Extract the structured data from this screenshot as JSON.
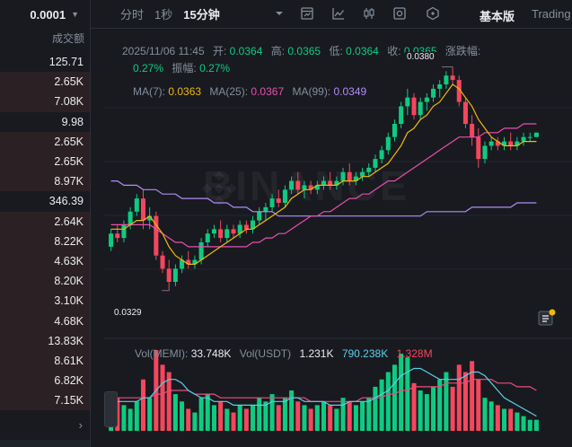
{
  "order_book": {
    "precision": "0.0001",
    "volume_header": "成交额",
    "rows": [
      {
        "value": "125.71",
        "shaded": false
      },
      {
        "value": "2.65K",
        "shaded": true
      },
      {
        "value": "7.08K",
        "shaded": true
      },
      {
        "value": "9.98",
        "shaded": false
      },
      {
        "value": "2.65K",
        "shaded": true
      },
      {
        "value": "2.65K",
        "shaded": true
      },
      {
        "value": "8.97K",
        "shaded": true
      },
      {
        "value": "346.39",
        "shaded": false
      },
      {
        "value": "2.64K",
        "shaded": true
      },
      {
        "value": "8.22K",
        "shaded": true
      },
      {
        "value": "4.63K",
        "shaded": true
      },
      {
        "value": "8.20K",
        "shaded": true
      },
      {
        "value": "3.10K",
        "shaded": true
      },
      {
        "value": "4.68K",
        "shaded": true
      },
      {
        "value": "13.83K",
        "shaded": true
      },
      {
        "value": "8.61K",
        "shaded": true
      },
      {
        "value": "6.82K",
        "shaded": true
      },
      {
        "value": "7.15K",
        "shaded": true
      }
    ],
    "more_icon": "chevron-right-icon"
  },
  "toolbar": {
    "timeframes": [
      "分时",
      "1秒",
      "15分钟"
    ],
    "active_timeframe": "15分钟",
    "icons": [
      "chevron-down-icon",
      "indicator-icon",
      "line-chart-icon",
      "candlestick-icon",
      "settings-icon",
      "hexagon-icon"
    ],
    "view_basic": "基本版",
    "view_trading": "Trading"
  },
  "candle_info": {
    "date": "2025/11/06 11:45",
    "open_label": "开:",
    "open": "0.0364",
    "high_label": "高:",
    "high": "0.0365",
    "low_label": "低:",
    "low": "0.0364",
    "close_label": "收:",
    "close": "0.0365",
    "change_label": "涨跌幅:",
    "change": "0.27%",
    "amp_label": "振幅:",
    "amp": "0.27%"
  },
  "ma": {
    "ma7_label": "MA(7):",
    "ma7": "0.0363",
    "ma25_label": "MA(25):",
    "ma25": "0.0367",
    "ma99_label": "MA(99):",
    "ma99": "0.0349"
  },
  "volume_info": {
    "vol_label": "Vol(MEMI):",
    "vol": "33.748K",
    "usdt_label": "Vol(USDT)",
    "usdt": "1.231K",
    "usdt_ma1": "790.238K",
    "usdt_ma2": "1.328M"
  },
  "markers": {
    "high": "0.0380",
    "low": "0.0329"
  },
  "watermark": "BINANCE",
  "colors": {
    "up": "#0ecb81",
    "down": "#f6465d",
    "ma7": "#f0b90b",
    "ma25": "#e84fad",
    "ma99": "#b38bf7",
    "vol_ma1": "#5ad0e8",
    "vol_ma2": "#e84f7a"
  },
  "chart_data": {
    "type": "candlestick",
    "interval": "15分钟",
    "price_range": [
      0.0322,
      0.0385
    ],
    "candles": [
      [
        0.0339,
        0.0343,
        0.0338,
        0.0342
      ],
      [
        0.0342,
        0.0344,
        0.034,
        0.0341
      ],
      [
        0.0341,
        0.0345,
        0.034,
        0.0344
      ],
      [
        0.0344,
        0.0348,
        0.0343,
        0.0347
      ],
      [
        0.0347,
        0.0351,
        0.0346,
        0.035
      ],
      [
        0.035,
        0.0352,
        0.0343,
        0.0345
      ],
      [
        0.0345,
        0.0348,
        0.0343,
        0.0346
      ],
      [
        0.0346,
        0.0347,
        0.0336,
        0.0337
      ],
      [
        0.0337,
        0.0338,
        0.0333,
        0.0334
      ],
      [
        0.0334,
        0.0336,
        0.0329,
        0.0331
      ],
      [
        0.0331,
        0.0335,
        0.033,
        0.0334
      ],
      [
        0.0334,
        0.0337,
        0.0333,
        0.0336
      ],
      [
        0.0336,
        0.0338,
        0.0334,
        0.0335
      ],
      [
        0.0335,
        0.0337,
        0.0334,
        0.0336
      ],
      [
        0.0336,
        0.0341,
        0.0335,
        0.034
      ],
      [
        0.034,
        0.0343,
        0.0339,
        0.0342
      ],
      [
        0.0342,
        0.0344,
        0.0341,
        0.0343
      ],
      [
        0.0343,
        0.0345,
        0.034,
        0.0341
      ],
      [
        0.0341,
        0.0344,
        0.034,
        0.0343
      ],
      [
        0.0343,
        0.0344,
        0.0341,
        0.0342
      ],
      [
        0.0342,
        0.0345,
        0.0341,
        0.0344
      ],
      [
        0.0344,
        0.0345,
        0.0342,
        0.0343
      ],
      [
        0.0343,
        0.0346,
        0.0342,
        0.0345
      ],
      [
        0.0345,
        0.0348,
        0.0344,
        0.0347
      ],
      [
        0.0347,
        0.0349,
        0.0345,
        0.0348
      ],
      [
        0.0348,
        0.0351,
        0.0347,
        0.035
      ],
      [
        0.035,
        0.0352,
        0.0348,
        0.0349
      ],
      [
        0.0349,
        0.0353,
        0.0348,
        0.0352
      ],
      [
        0.0352,
        0.0355,
        0.0351,
        0.0354
      ],
      [
        0.0354,
        0.0356,
        0.0351,
        0.0352
      ],
      [
        0.0352,
        0.0354,
        0.035,
        0.0353
      ],
      [
        0.0353,
        0.0354,
        0.0351,
        0.0352
      ],
      [
        0.0352,
        0.0354,
        0.0351,
        0.0353
      ],
      [
        0.0353,
        0.0355,
        0.0352,
        0.0354
      ],
      [
        0.0354,
        0.0356,
        0.0352,
        0.0353
      ],
      [
        0.0353,
        0.0355,
        0.0352,
        0.0354
      ],
      [
        0.0354,
        0.0357,
        0.0353,
        0.0356
      ],
      [
        0.0356,
        0.0358,
        0.0353,
        0.0354
      ],
      [
        0.0354,
        0.0356,
        0.0353,
        0.0355
      ],
      [
        0.0355,
        0.0357,
        0.0354,
        0.0356
      ],
      [
        0.0356,
        0.0358,
        0.0355,
        0.0357
      ],
      [
        0.0357,
        0.036,
        0.0356,
        0.0359
      ],
      [
        0.0359,
        0.0362,
        0.0358,
        0.0361
      ],
      [
        0.0361,
        0.0365,
        0.036,
        0.0364
      ],
      [
        0.0364,
        0.0368,
        0.0363,
        0.0367
      ],
      [
        0.0367,
        0.0372,
        0.0366,
        0.0371
      ],
      [
        0.0371,
        0.0375,
        0.0369,
        0.0373
      ],
      [
        0.0373,
        0.0374,
        0.0368,
        0.0369
      ],
      [
        0.0369,
        0.0373,
        0.0368,
        0.0372
      ],
      [
        0.0372,
        0.0374,
        0.037,
        0.0373
      ],
      [
        0.0373,
        0.0376,
        0.0372,
        0.0375
      ],
      [
        0.0375,
        0.0377,
        0.0373,
        0.0376
      ],
      [
        0.0376,
        0.0379,
        0.0375,
        0.0378
      ],
      [
        0.0378,
        0.038,
        0.0376,
        0.0377
      ],
      [
        0.0377,
        0.0378,
        0.0371,
        0.0372
      ],
      [
        0.0372,
        0.0373,
        0.0366,
        0.0367
      ],
      [
        0.0367,
        0.0369,
        0.0362,
        0.0364
      ],
      [
        0.0364,
        0.0366,
        0.0357,
        0.0359
      ],
      [
        0.0359,
        0.0363,
        0.0358,
        0.0362
      ],
      [
        0.0362,
        0.0364,
        0.0361,
        0.0363
      ],
      [
        0.0363,
        0.0364,
        0.0361,
        0.0362
      ],
      [
        0.0362,
        0.0364,
        0.0361,
        0.0363
      ],
      [
        0.0363,
        0.0365,
        0.0361,
        0.0362
      ],
      [
        0.0362,
        0.0364,
        0.0361,
        0.0363
      ],
      [
        0.0363,
        0.0365,
        0.0362,
        0.0364
      ],
      [
        0.0364,
        0.0365,
        0.0363,
        0.0364
      ],
      [
        0.0364,
        0.0365,
        0.0364,
        0.0365
      ]
    ],
    "volumes": [
      5,
      9,
      7,
      6,
      8,
      14,
      9,
      22,
      18,
      16,
      10,
      8,
      6,
      5,
      9,
      10,
      7,
      8,
      6,
      5,
      7,
      6,
      7,
      9,
      8,
      10,
      7,
      9,
      11,
      8,
      7,
      6,
      7,
      8,
      7,
      6,
      9,
      8,
      7,
      8,
      9,
      12,
      14,
      16,
      18,
      21,
      20,
      13,
      11,
      10,
      12,
      14,
      16,
      12,
      18,
      16,
      19,
      14,
      9,
      8,
      7,
      6,
      6,
      5,
      4,
      3,
      3
    ],
    "ma7": [
      0.0343,
      0.0343,
      0.0343,
      0.0344,
      0.0345,
      0.0345,
      0.0346,
      0.0344,
      0.0342,
      0.0339,
      0.0337,
      0.0336,
      0.0335,
      0.0335,
      0.0336,
      0.0337,
      0.0338,
      0.0339,
      0.034,
      0.0341,
      0.0342,
      0.0343,
      0.0343,
      0.0344,
      0.0345,
      0.0346,
      0.0347,
      0.0348,
      0.035,
      0.0351,
      0.0352,
      0.0352,
      0.0353,
      0.0353,
      0.0353,
      0.0353,
      0.0354,
      0.0354,
      0.0354,
      0.0355,
      0.0355,
      0.0356,
      0.0357,
      0.0358,
      0.036,
      0.0362,
      0.0365,
      0.0366,
      0.0368,
      0.0369,
      0.0371,
      0.0372,
      0.0374,
      0.0376,
      0.0375,
      0.0373,
      0.0371,
      0.0368,
      0.0366,
      0.0364,
      0.0363,
      0.0362,
      0.0362,
      0.0362,
      0.0363,
      0.0363,
      0.0363
    ],
    "ma25": [
      0.0344,
      0.0344,
      0.0344,
      0.0344,
      0.0344,
      0.0344,
      0.0344,
      0.0343,
      0.0342,
      0.0341,
      0.034,
      0.034,
      0.0339,
      0.0339,
      0.0339,
      0.0339,
      0.0339,
      0.0339,
      0.0339,
      0.0339,
      0.0339,
      0.0339,
      0.034,
      0.034,
      0.0341,
      0.0341,
      0.0342,
      0.0342,
      0.0343,
      0.0344,
      0.0345,
      0.0346,
      0.0346,
      0.0347,
      0.0347,
      0.0348,
      0.0349,
      0.035,
      0.035,
      0.0351,
      0.0351,
      0.0352,
      0.0353,
      0.0354,
      0.0354,
      0.0355,
      0.0356,
      0.0357,
      0.0358,
      0.0359,
      0.036,
      0.0361,
      0.0362,
      0.0363,
      0.0364,
      0.0364,
      0.0364,
      0.0364,
      0.0365,
      0.0365,
      0.0365,
      0.0366,
      0.0366,
      0.0366,
      0.0367,
      0.0367,
      0.0367
    ],
    "ma99": [
      0.0354,
      0.0354,
      0.0353,
      0.0353,
      0.0353,
      0.0352,
      0.0352,
      0.0352,
      0.0351,
      0.0351,
      0.0351,
      0.035,
      0.035,
      0.035,
      0.035,
      0.035,
      0.0349,
      0.0349,
      0.0349,
      0.0348,
      0.0348,
      0.0348,
      0.0347,
      0.0347,
      0.0347,
      0.0347,
      0.0346,
      0.0346,
      0.0346,
      0.0346,
      0.0346,
      0.0346,
      0.0346,
      0.0346,
      0.0346,
      0.0346,
      0.0346,
      0.0346,
      0.0346,
      0.0346,
      0.0346,
      0.0346,
      0.0346,
      0.0346,
      0.0346,
      0.0346,
      0.0346,
      0.0346,
      0.0346,
      0.0347,
      0.0347,
      0.0347,
      0.0347,
      0.0347,
      0.0347,
      0.0347,
      0.0348,
      0.0348,
      0.0348,
      0.0348,
      0.0348,
      0.0348,
      0.0348,
      0.0349,
      0.0349,
      0.0349,
      0.0349
    ],
    "vol_ma1": [
      8,
      8,
      8,
      8,
      8,
      9,
      9,
      11,
      13,
      14,
      14,
      13,
      11,
      10,
      9,
      9,
      8,
      8,
      8,
      7,
      7,
      7,
      7,
      7,
      7,
      8,
      8,
      8,
      9,
      9,
      8,
      8,
      8,
      8,
      7,
      7,
      7,
      8,
      8,
      8,
      8,
      9,
      10,
      11,
      13,
      15,
      16,
      17,
      17,
      16,
      15,
      14,
      14,
      14,
      14,
      15,
      16,
      16,
      15,
      13,
      11,
      9,
      8,
      7,
      6,
      5,
      4
    ],
    "vol_ma2": [
      9,
      9,
      9,
      9,
      9,
      9,
      9,
      10,
      10,
      11,
      11,
      11,
      11,
      10,
      10,
      10,
      10,
      9,
      9,
      9,
      9,
      9,
      9,
      9,
      9,
      9,
      9,
      9,
      9,
      9,
      9,
      8,
      8,
      8,
      8,
      8,
      8,
      8,
      8,
      9,
      9,
      9,
      9,
      10,
      10,
      11,
      11,
      12,
      12,
      12,
      12,
      12,
      13,
      13,
      13,
      13,
      14,
      14,
      14,
      14,
      13,
      13,
      13,
      12,
      12,
      12,
      11
    ]
  }
}
